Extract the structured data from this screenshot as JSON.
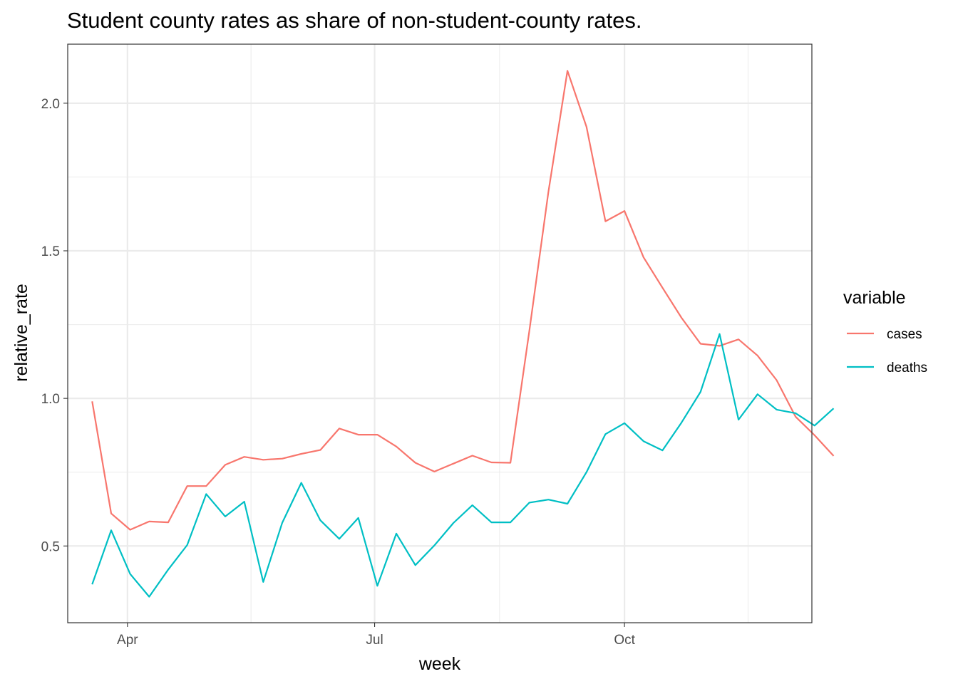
{
  "chart_data": {
    "type": "line",
    "title": "Student county rates as share of non-student-county rates.",
    "xlabel": "week",
    "ylabel": "relative_rate",
    "x_start_date": "2020-03-19",
    "x_step_days": 7,
    "x_ticks": [
      {
        "label": "Apr",
        "date": "2020-04-01"
      },
      {
        "label": "Jul",
        "date": "2020-07-01"
      },
      {
        "label": "Oct",
        "date": "2020-10-01"
      }
    ],
    "xlim": [
      "2020-03-10",
      "2020-12-09"
    ],
    "y_ticks": [
      0.5,
      1.0,
      1.5,
      2.0
    ],
    "y_tick_labels": [
      "0.5",
      "1.0",
      "1.5",
      "2.0"
    ],
    "ylim": [
      0.24,
      2.2
    ],
    "grid": true,
    "legend": {
      "title": "variable",
      "position": "right"
    },
    "series": [
      {
        "name": "cases",
        "color": "#F8766D",
        "values": [
          0.99,
          0.61,
          0.555,
          0.583,
          0.58,
          0.703,
          0.703,
          0.775,
          0.802,
          0.792,
          0.796,
          0.812,
          0.825,
          0.898,
          0.877,
          0.877,
          0.837,
          0.782,
          0.752,
          0.779,
          0.806,
          0.783,
          0.782,
          1.23,
          1.7,
          2.11,
          1.92,
          1.6,
          1.635,
          1.478,
          1.375,
          1.273,
          1.185,
          1.178,
          1.2,
          1.145,
          1.062,
          0.938,
          0.875,
          0.805
        ]
      },
      {
        "name": "deaths",
        "color": "#00BFC4",
        "values": [
          0.37,
          0.553,
          0.405,
          0.328,
          0.42,
          0.503,
          0.676,
          0.6,
          0.65,
          0.378,
          0.579,
          0.714,
          0.587,
          0.524,
          0.595,
          0.365,
          0.542,
          0.435,
          0.502,
          0.578,
          0.638,
          0.58,
          0.58,
          0.647,
          0.657,
          0.643,
          0.75,
          0.879,
          0.916,
          0.855,
          0.824,
          0.918,
          1.022,
          1.218,
          0.928,
          1.014,
          0.962,
          0.95,
          0.908,
          0.966
        ]
      }
    ]
  }
}
